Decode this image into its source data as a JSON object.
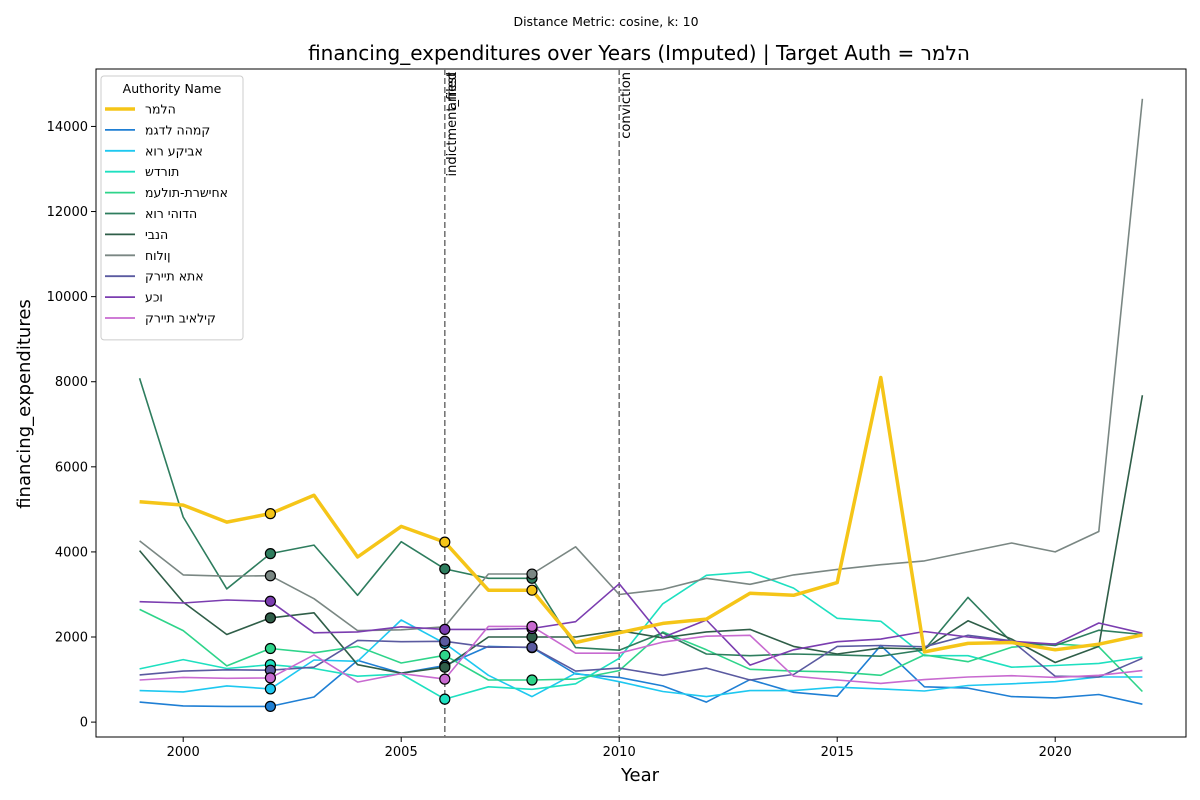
{
  "suptitle": "Distance Metric: cosine, k: 10",
  "chart_data": {
    "type": "line",
    "title": "financing_expenditures over Years (Imputed) | Target Auth = הלמר",
    "xlabel": "Year",
    "ylabel": "financing_expenditures",
    "xlim": [
      1998,
      2023
    ],
    "ylim": [
      -350,
      15350
    ],
    "x_ticks": [
      2000,
      2005,
      2010,
      2015,
      2020
    ],
    "y_ticks": [
      0,
      2000,
      4000,
      6000,
      8000,
      10000,
      12000,
      14000
    ],
    "legend_title": "Authority Name",
    "legend_position": "top-left",
    "grid": false,
    "x": [
      1999,
      2000,
      2001,
      2002,
      2003,
      2004,
      2005,
      2006,
      2007,
      2008,
      2009,
      2010,
      2011,
      2012,
      2013,
      2014,
      2015,
      2016,
      2017,
      2018,
      2019,
      2020,
      2021,
      2022
    ],
    "events": [
      {
        "year": 2006,
        "label": "indictment_filed"
      },
      {
        "year": 2006,
        "label": "arrest"
      },
      {
        "year": 2010,
        "label": "conviction"
      }
    ],
    "series": [
      {
        "name": "הלמר",
        "color": "#f5c518",
        "target": true,
        "values": [
          5180,
          5100,
          4700,
          4900,
          5330,
          3880,
          4600,
          4230,
          3100,
          3100,
          1870,
          2100,
          2320,
          2420,
          3030,
          2980,
          3280,
          8100,
          1650,
          1850,
          1870,
          1700,
          1830,
          2050
        ],
        "markers": [
          2002,
          2006,
          2008
        ]
      },
      {
        "name": "קמהה לדגמ",
        "color": "#1f7fd4",
        "values": [
          470,
          380,
          370,
          370,
          590,
          1450,
          1150,
          1330,
          1780,
          1750,
          1130,
          1050,
          850,
          470,
          1000,
          700,
          610,
          1800,
          830,
          800,
          600,
          570,
          650,
          420
        ],
        "markers": [
          2002,
          2006,
          2008
        ]
      },
      {
        "name": "אביקע רוא",
        "color": "#1ec8f0",
        "values": [
          740,
          710,
          850,
          780,
          1460,
          1430,
          2400,
          1850,
          1100,
          600,
          1150,
          950,
          720,
          600,
          740,
          740,
          820,
          780,
          730,
          860,
          900,
          950,
          1060,
          1060
        ],
        "markers": [
          2002,
          2006
        ]
      },
      {
        "name": "תורדש",
        "color": "#1ee0c0",
        "values": [
          1250,
          1470,
          1260,
          1350,
          1260,
          1080,
          1130,
          540,
          830,
          770,
          900,
          1500,
          2780,
          3450,
          3530,
          3150,
          2440,
          2370,
          1560,
          1560,
          1290,
          1330,
          1380,
          1530
        ],
        "markers": [
          2002,
          2006
        ]
      },
      {
        "name": "אחישרת-תולעמ",
        "color": "#2ed48a",
        "values": [
          2650,
          2150,
          1320,
          1730,
          1630,
          1780,
          1390,
          1570,
          990,
          990,
          1010,
          1210,
          2120,
          1700,
          1240,
          1200,
          1180,
          1100,
          1580,
          1420,
          1760,
          1840,
          1770,
          720
        ],
        "markers": [
          2002,
          2006,
          2008
        ]
      },
      {
        "name": "הדוהי רוא",
        "color": "#2e7d5e",
        "values": [
          8080,
          4820,
          3130,
          3960,
          4160,
          2980,
          4240,
          3600,
          3380,
          3380,
          1750,
          1690,
          2100,
          1600,
          1560,
          1600,
          1580,
          1550,
          1700,
          2930,
          1880,
          1800,
          2160,
          2060
        ],
        "markers": [
          2002,
          2006,
          2008
        ]
      },
      {
        "name": "הנבי",
        "color": "#2f5e48",
        "values": [
          4030,
          2820,
          2060,
          2450,
          2570,
          1350,
          1150,
          1290,
          2000,
          2000,
          2000,
          2150,
          1980,
          2120,
          2180,
          1780,
          1600,
          1740,
          1720,
          2380,
          1950,
          1400,
          1780,
          7680
        ],
        "markers": [
          2002,
          2006,
          2008
        ]
      },
      {
        "name": "ןולוח",
        "color": "#7a8783",
        "values": [
          4260,
          3460,
          3430,
          3440,
          2900,
          2150,
          2170,
          2240,
          3480,
          3480,
          4120,
          3000,
          3120,
          3380,
          3240,
          3460,
          3590,
          3700,
          3790,
          4000,
          4210,
          4000,
          4480,
          14650
        ],
        "markers": [
          2002,
          2008
        ]
      },
      {
        "name": "אתא תיירק",
        "color": "#5a5aa0",
        "values": [
          1110,
          1200,
          1230,
          1220,
          1290,
          1920,
          1890,
          1900,
          1760,
          1760,
          1200,
          1270,
          1100,
          1270,
          990,
          1120,
          1780,
          1800,
          1770,
          2040,
          1910,
          1080,
          1060,
          1500
        ],
        "markers": [
          2002,
          2006,
          2008
        ]
      },
      {
        "name": "וכע",
        "color": "#7b3db0",
        "values": [
          2830,
          2800,
          2870,
          2840,
          2100,
          2120,
          2240,
          2180,
          2180,
          2200,
          2360,
          3250,
          1990,
          2400,
          1340,
          1700,
          1890,
          1950,
          2130,
          2000,
          1900,
          1830,
          2330,
          2090
        ],
        "markers": [
          2002,
          2006,
          2008
        ]
      },
      {
        "name": "קילאיב תיירק",
        "color": "#c86ad0",
        "values": [
          990,
          1050,
          1030,
          1040,
          1580,
          940,
          1140,
          1010,
          2250,
          2250,
          1620,
          1620,
          1880,
          2020,
          2040,
          1080,
          990,
          910,
          1000,
          1060,
          1090,
          1050,
          1100,
          1210
        ],
        "markers": [
          2002,
          2006,
          2008
        ]
      }
    ]
  }
}
